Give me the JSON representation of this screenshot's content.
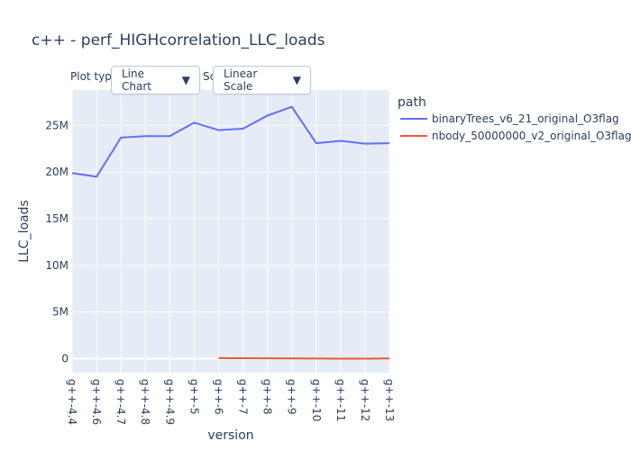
{
  "title": "c++ - perf_HIGHcorrelation_LLC_loads",
  "controls": {
    "plot_type_label": "Plot type",
    "scale_label": "Scale",
    "plot_type_value": "Line Chart",
    "scale_value": "Linear Scale",
    "arrow": "▼"
  },
  "colors": {
    "plot_bg": "#e5ecf6",
    "grid": "#ffffff",
    "text": "#2a3f5f"
  },
  "chart_data": {
    "type": "line",
    "xlabel": "version",
    "ylabel": "LLC_loads",
    "legend_title": "path",
    "legend_position": "right",
    "categories": [
      "g++-4.4",
      "g++-4.6",
      "g++-4.7",
      "g++-4.8",
      "g++-4.9",
      "g++-5",
      "g++-6",
      "g++-7",
      "g++-8",
      "g++-9",
      "g++-10",
      "g++-11",
      "g++-12",
      "g++-13"
    ],
    "ylim": [
      -1500000,
      28800000
    ],
    "yticks": [
      0,
      5000000,
      10000000,
      15000000,
      20000000,
      25000000
    ],
    "ytick_labels": [
      "0",
      "5M",
      "10M",
      "15M",
      "20M",
      "25M"
    ],
    "grid": true,
    "series": [
      {
        "name": "binaryTrees_v6_21_original_O3flag",
        "color": "#636efa",
        "values": [
          19900000,
          19500000,
          23700000,
          23850000,
          23850000,
          25300000,
          24500000,
          24650000,
          26050000,
          27000000,
          23100000,
          23350000,
          23050000,
          23100000
        ]
      },
      {
        "name": "nbody_50000000_v2_original_O3flag",
        "color": "#ef553b",
        "values": [
          null,
          null,
          null,
          null,
          null,
          null,
          50000,
          40000,
          30000,
          20000,
          10000,
          0,
          0,
          20000
        ]
      }
    ]
  }
}
